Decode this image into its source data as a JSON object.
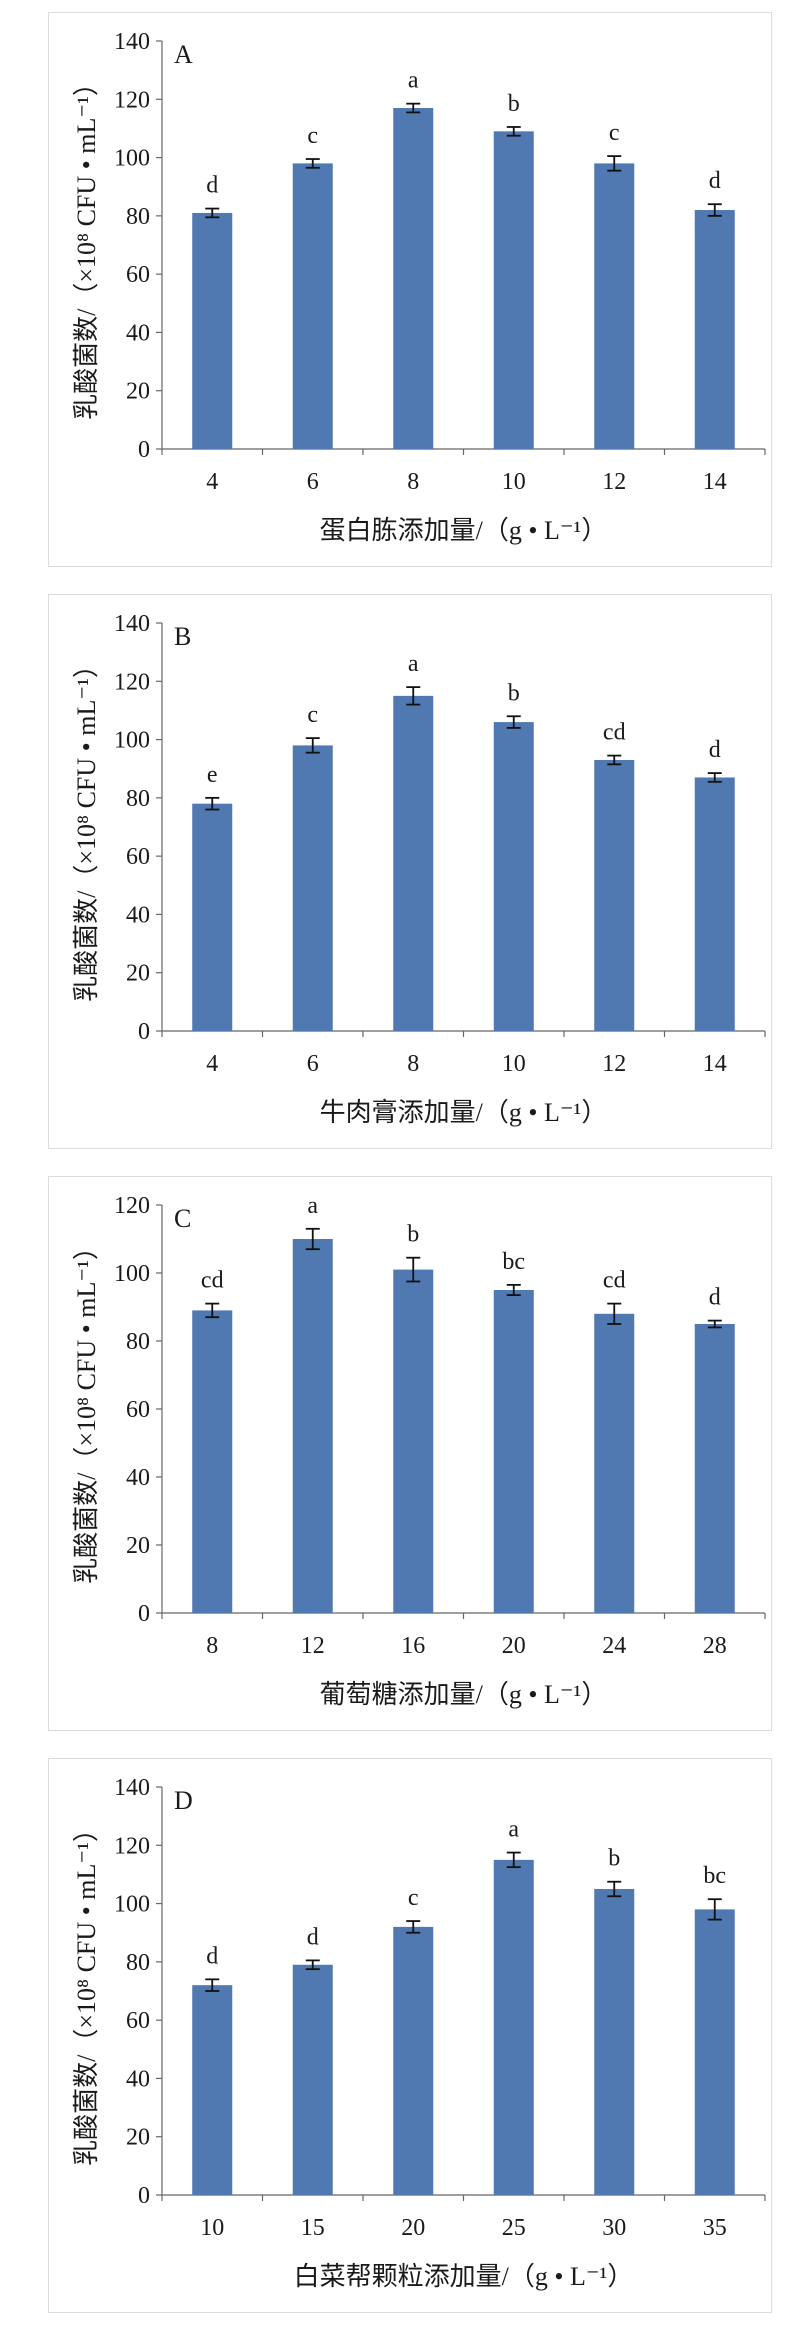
{
  "ylabel": "乳酸菌数/（×10⁸ CFU • mL⁻¹）",
  "colors": {
    "bar": "#4f79b0",
    "axis": "#666666",
    "text": "#1a1a1a"
  },
  "chart_data": [
    {
      "type": "bar",
      "panel_label": "A",
      "xlabel": "蛋白胨添加量/（g • L⁻¹）",
      "ylabel": "乳酸菌数/（×10⁸ CFU • mL⁻¹）",
      "categories": [
        "4",
        "6",
        "8",
        "10",
        "12",
        "14"
      ],
      "values": [
        81,
        98,
        117,
        109,
        98,
        82
      ],
      "errors": [
        1.5,
        1.5,
        1.5,
        1.5,
        2.5,
        2
      ],
      "labels": [
        "d",
        "c",
        "a",
        "b",
        "c",
        "d"
      ],
      "ylim": [
        0,
        140
      ],
      "yticks": [
        0,
        20,
        40,
        60,
        80,
        100,
        120,
        140
      ]
    },
    {
      "type": "bar",
      "panel_label": "B",
      "xlabel": "牛肉膏添加量/（g • L⁻¹）",
      "ylabel": "乳酸菌数/（×10⁸ CFU • mL⁻¹）",
      "categories": [
        "4",
        "6",
        "8",
        "10",
        "12",
        "14"
      ],
      "values": [
        78,
        98,
        115,
        106,
        93,
        87
      ],
      "errors": [
        2,
        2.5,
        3,
        2,
        1.5,
        1.5
      ],
      "labels": [
        "e",
        "c",
        "a",
        "b",
        "cd",
        "d"
      ],
      "ylim": [
        0,
        140
      ],
      "yticks": [
        0,
        20,
        40,
        60,
        80,
        100,
        120,
        140
      ]
    },
    {
      "type": "bar",
      "panel_label": "C",
      "xlabel": "葡萄糖添加量/（g • L⁻¹）",
      "ylabel": "乳酸菌数/（×10⁸ CFU • mL⁻¹）",
      "categories": [
        "8",
        "12",
        "16",
        "20",
        "24",
        "28"
      ],
      "values": [
        89,
        110,
        101,
        95,
        88,
        85
      ],
      "errors": [
        2,
        3,
        3.5,
        1.5,
        3,
        1
      ],
      "labels": [
        "cd",
        "a",
        "b",
        "bc",
        "cd",
        "d"
      ],
      "ylim": [
        0,
        120
      ],
      "yticks": [
        0,
        20,
        40,
        60,
        80,
        100,
        120
      ]
    },
    {
      "type": "bar",
      "panel_label": "D",
      "xlabel": "白菜帮颗粒添加量/（g • L⁻¹）",
      "ylabel": "乳酸菌数/（×10⁸ CFU • mL⁻¹）",
      "categories": [
        "10",
        "15",
        "20",
        "25",
        "30",
        "35"
      ],
      "values": [
        72,
        79,
        92,
        115,
        105,
        98
      ],
      "errors": [
        2,
        1.5,
        2,
        2.5,
        2.5,
        3.5
      ],
      "labels": [
        "d",
        "d",
        "c",
        "a",
        "b",
        "bc"
      ],
      "ylim": [
        0,
        140
      ],
      "yticks": [
        0,
        20,
        40,
        60,
        80,
        100,
        120,
        140
      ]
    }
  ]
}
